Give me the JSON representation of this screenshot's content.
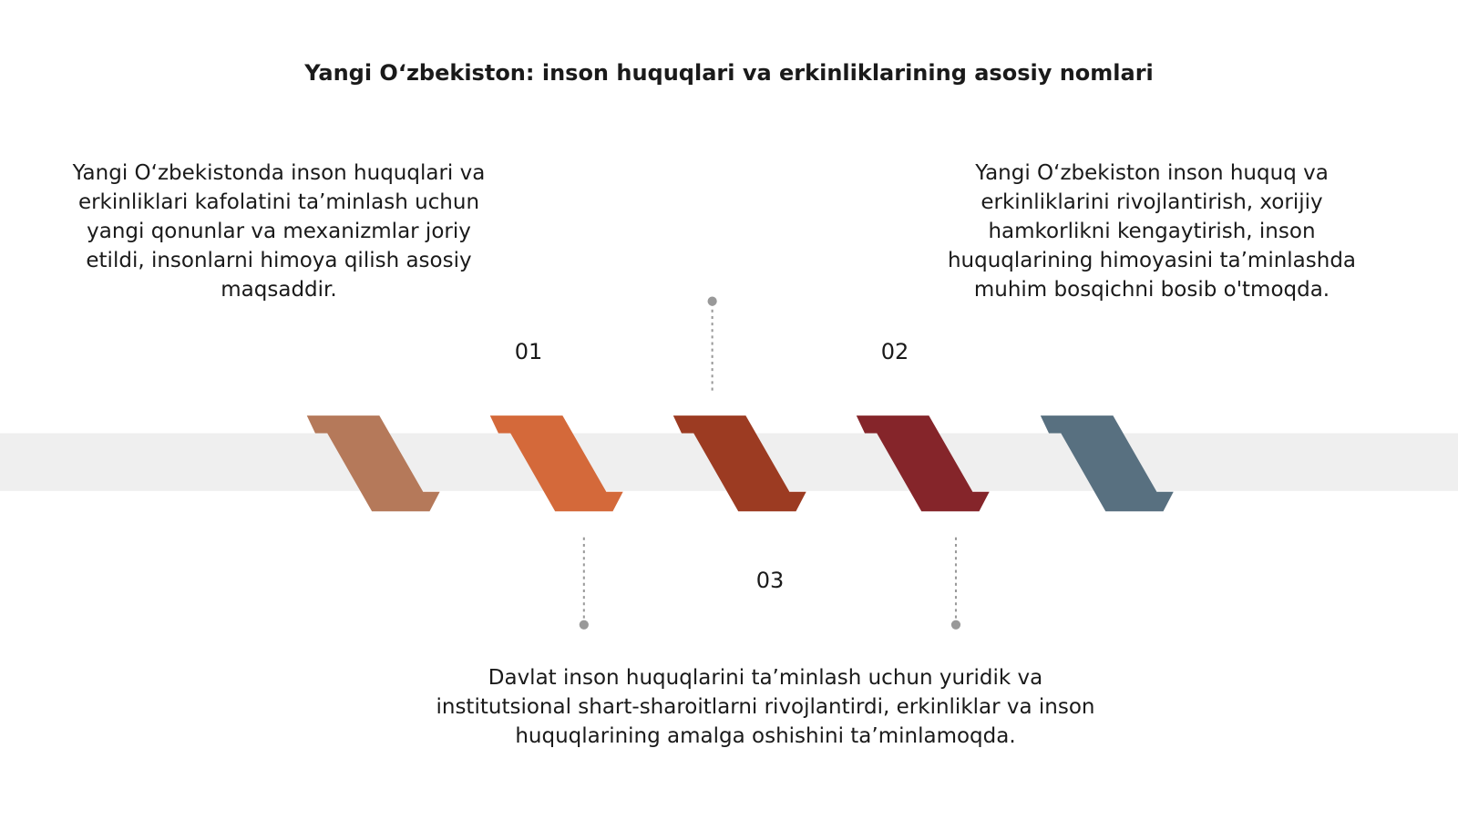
{
  "title": "Yangi O‘zbekiston: inson huquqlari va erkinliklarining asosiy nomlari",
  "steps": [
    {
      "number": "01",
      "text": "Yangi O‘zbekistonda inson huquqlari va erkinliklari kafolatini ta’minlash uchun yangi qonunlar va mexanizmlar joriy etildi, insonlarni himoya qilish asosiy maqsaddir."
    },
    {
      "number": "02",
      "text": "Yangi O‘zbekiston inson huquq va erkinliklarini rivojlantirish, xorijiy hamkorlikni kengaytirish, inson huquqlarining himoyasini ta’minlashda muhim bosqichni bosib o'tmoqda."
    },
    {
      "number": "03",
      "text": "Davlat inson huquqlarini ta’minlash uchun yuridik va institutsional shart-sharoitlarni rivojlantirdi, erkinliklar va inson huquqlarining amalga oshishini ta’minlamoqda."
    }
  ]
}
